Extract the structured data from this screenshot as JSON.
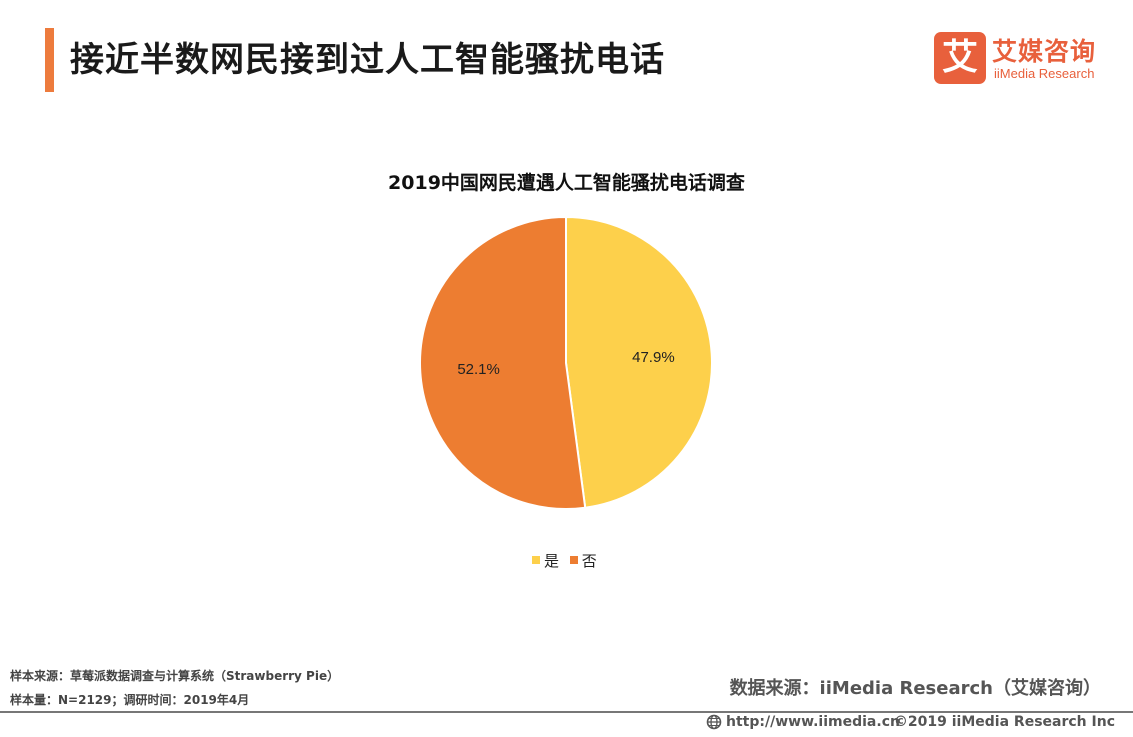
{
  "header": {
    "title": "接近半数网民接到过人工智能骚扰电话",
    "accent_color": "#ed7b3d"
  },
  "logo": {
    "icon_char": "艾",
    "name_cn": "艾媒咨询",
    "name_en": "iiMedia Research",
    "color": "#e8603c"
  },
  "chart_data": {
    "type": "pie",
    "title": "2019中国网民遭遇人工智能骚扰电话调查",
    "categories": [
      "是",
      "否"
    ],
    "values": [
      47.9,
      52.1
    ],
    "labels": [
      "47.9%",
      "52.1%"
    ],
    "colors": [
      "#fdd04b",
      "#ed7d31"
    ],
    "legend": "bottom"
  },
  "legend": {
    "items": [
      {
        "label": "是",
        "color": "#fdd04b"
      },
      {
        "label": "否",
        "color": "#ed7d31"
      }
    ]
  },
  "footer": {
    "sample_source": "样本来源：草莓派数据调查与计算系统（Strawberry Pie）",
    "sample_size": "样本量：N=2129；调研时间：2019年4月",
    "data_source": "数据来源：iiMedia Research（艾媒咨询）",
    "url": "http://www.iimedia.cn",
    "copyright": "©2019  iiMedia Research  Inc"
  }
}
